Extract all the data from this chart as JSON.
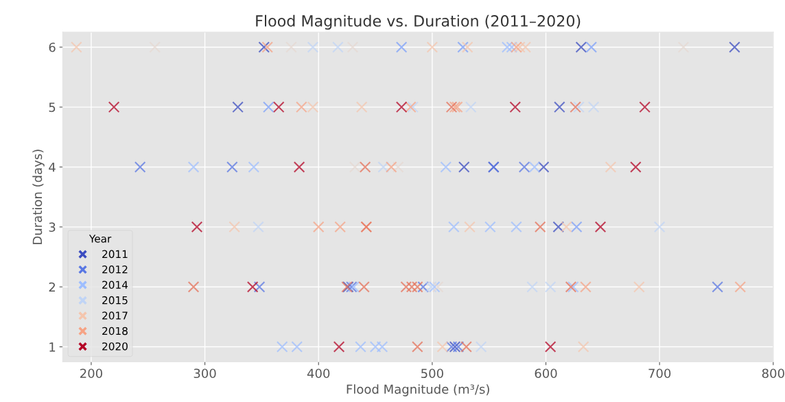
{
  "chart_data": {
    "type": "scatter",
    "title": "Flood Magnitude vs. Duration (2011–2020)",
    "xlabel": "Flood Magnitude (m³/s)",
    "ylabel": "Duration (days)",
    "legend_title": "Year",
    "legend": "bottom left",
    "grid": true,
    "marker": "cross",
    "xlim": [
      175,
      800
    ],
    "xticks": [
      200,
      300,
      400,
      500,
      600,
      700,
      800
    ],
    "ylim": [
      0.75,
      6.25
    ],
    "yticks": [
      1,
      2,
      3,
      4,
      5,
      6
    ],
    "series": [
      {
        "name": "2011",
        "color": "#3b4cc0",
        "x": [
          352,
          631,
          766,
          329,
          612,
          528,
          554,
          598,
          611,
          426,
          520
        ],
        "values": [
          6,
          6,
          6,
          5,
          5,
          4,
          4,
          4,
          3,
          2,
          1
        ]
      },
      {
        "name": "2012",
        "color": "#5977e3",
        "x": [
          243,
          324,
          554,
          581,
          348,
          429,
          492,
          751,
          517,
          523
        ],
        "values": [
          4,
          4,
          4,
          4,
          2,
          2,
          2,
          2,
          1,
          1
        ]
      },
      {
        "color": "#7b9ff9",
        "x": [
          473,
          527,
          640,
          356,
          627
        ],
        "values": [
          6,
          6,
          6,
          5,
          3
        ]
      },
      {
        "name": "2014",
        "color": "#9ebeff",
        "x": [
          566,
          570,
          290,
          343,
          512,
          590,
          519,
          551,
          574,
          431,
          502,
          624,
          368,
          381,
          437,
          450,
          456
        ],
        "values": [
          6,
          6,
          4,
          4,
          4,
          4,
          3,
          3,
          3,
          2,
          2,
          2,
          1,
          1,
          1,
          1,
          1
        ]
      },
      {
        "name": "2015",
        "color": "#c0d4f5",
        "x": [
          395,
          417,
          483,
          534,
          629,
          642,
          457,
          347,
          700,
          499,
          588,
          604,
          543
        ],
        "values": [
          6,
          6,
          5,
          5,
          5,
          5,
          4,
          3,
          3,
          2,
          2,
          2,
          1
        ]
      },
      {
        "color": "#e5d8d1",
        "x": [
          256,
          376,
          430,
          721,
          432,
          470,
          505
        ],
        "values": [
          6,
          6,
          6,
          6,
          4,
          4,
          2
        ]
      },
      {
        "name": "2017",
        "color": "#f4c5ad",
        "x": [
          187,
          500,
          531,
          577,
          582,
          395,
          438,
          657,
          326,
          533,
          618,
          682,
          509,
          633
        ],
        "values": [
          6,
          6,
          6,
          6,
          6,
          5,
          5,
          4,
          3,
          3,
          3,
          2,
          1,
          1
        ]
      },
      {
        "name": "2018",
        "color": "#f6a385",
        "x": [
          355,
          574,
          385,
          481,
          520,
          522,
          464,
          400,
          419,
          442,
          635,
          771
        ],
        "values": [
          6,
          6,
          5,
          5,
          5,
          5,
          4,
          3,
          3,
          3,
          2,
          2
        ]
      },
      {
        "color": "#e57058",
        "x": [
          517,
          626,
          441,
          442,
          595,
          290,
          425,
          440,
          477,
          482,
          487,
          622,
          487,
          530
        ],
        "values": [
          5,
          5,
          4,
          3,
          3,
          2,
          2,
          2,
          2,
          2,
          2,
          2,
          1,
          1
        ]
      },
      {
        "name": "2020",
        "color": "#b40426",
        "x": [
          220,
          365,
          473,
          573,
          687,
          383,
          679,
          293,
          648,
          342,
          418,
          604
        ],
        "values": [
          5,
          5,
          5,
          5,
          5,
          4,
          4,
          3,
          3,
          2,
          1,
          1
        ]
      }
    ]
  }
}
